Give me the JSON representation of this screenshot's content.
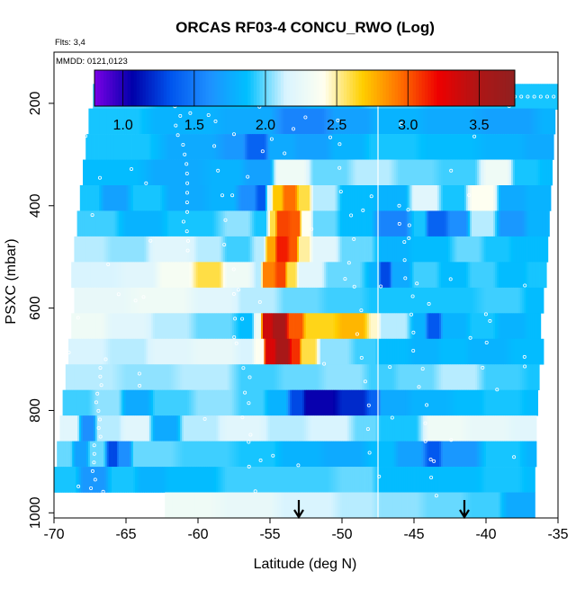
{
  "chart_data": {
    "type": "heatmap",
    "title": "ORCAS RF03-4 CONCU_RWO (Log)",
    "top_left_labels": [
      "Flts: 3,4",
      "MMDD: 0121,0123"
    ],
    "xlabel": "Latitude (deg N)",
    "ylabel": "PSXC (mbar)",
    "xlim": [
      -70,
      -35
    ],
    "ylim": [
      1010,
      100
    ],
    "x_ticks": [
      -70,
      -65,
      -60,
      -55,
      -50,
      -45,
      -40,
      -35
    ],
    "y_ticks": [
      200,
      400,
      600,
      800,
      1000
    ],
    "colorbar": {
      "range": [
        0.8,
        3.75
      ],
      "ticks": [
        1.0,
        1.5,
        2.0,
        2.5,
        3.0,
        3.5
      ],
      "tick_labels": [
        "1.0",
        "1.5",
        "2.0",
        "2.5",
        "3.0",
        "3.5"
      ],
      "colors": [
        "#7a00e6",
        "#0000aa",
        "#0055ee",
        "#1e90ff",
        "#00c0ff",
        "#d8f4ff",
        "#fffff0",
        "#ffd000",
        "#ff7000",
        "#ee0000",
        "#b01515",
        "#902020"
      ]
    },
    "divider_latitude": -47.5,
    "arrows_latitude": [
      -53,
      -41.5
    ],
    "bands": [
      {
        "p": 187,
        "x0": -67.3,
        "x1": -35,
        "segments": [
          [
            -67.3,
            1.95
          ],
          [
            -62.5,
            1.85
          ],
          [
            -59,
            1.85
          ],
          [
            -55.5,
            1.75
          ],
          [
            -52,
            1.85
          ],
          [
            -48,
            1.95
          ],
          [
            -44,
            1.9
          ],
          [
            -40,
            1.9
          ],
          [
            -36,
            1.9
          ]
        ]
      },
      {
        "p": 235,
        "x0": -67.6,
        "x1": -35.2,
        "segments": [
          [
            -67.6,
            1.9
          ],
          [
            -63,
            1.8
          ],
          [
            -58,
            1.75
          ],
          [
            -54,
            1.55
          ],
          [
            -50.5,
            1.7
          ],
          [
            -47.5,
            1.8
          ],
          [
            -44,
            1.75
          ],
          [
            -40,
            1.7
          ],
          [
            -36,
            1.8
          ]
        ]
      },
      {
        "p": 285,
        "x0": -67.8,
        "x1": -35.3,
        "segments": [
          [
            -67.8,
            1.9
          ],
          [
            -62,
            1.75
          ],
          [
            -58,
            1.65
          ],
          [
            -56.5,
            1.4
          ],
          [
            -55,
            1.75
          ],
          [
            -53,
            1.7
          ],
          [
            -50.5,
            1.8
          ],
          [
            -48,
            1.9
          ],
          [
            -44,
            1.85
          ],
          [
            -40,
            1.8
          ],
          [
            -37,
            1.75
          ]
        ]
      },
      {
        "p": 335,
        "x0": -68,
        "x1": -35.4,
        "segments": [
          [
            -68,
            1.85
          ],
          [
            -63,
            1.75
          ],
          [
            -59,
            1.8
          ],
          [
            -56.5,
            1.7
          ],
          [
            -54.5,
            2.3
          ],
          [
            -52,
            2.0
          ],
          [
            -49,
            2.1
          ],
          [
            -46,
            2.0
          ],
          [
            -43,
            1.95
          ],
          [
            -40,
            2.3
          ],
          [
            -38,
            1.9
          ],
          [
            -36,
            1.85
          ]
        ]
      },
      {
        "p": 385,
        "x0": -68.2,
        "x1": -35.5,
        "segments": [
          [
            -68.2,
            1.9
          ],
          [
            -66.5,
            1.7
          ],
          [
            -64.5,
            1.9
          ],
          [
            -62,
            1.75
          ],
          [
            -59,
            1.8
          ],
          [
            -57,
            1.6
          ],
          [
            -55.8,
            1.35
          ],
          [
            -55.2,
            2.2
          ],
          [
            -54.8,
            2.7
          ],
          [
            -54,
            2.95
          ],
          [
            -53,
            2.6
          ],
          [
            -52,
            2.1
          ],
          [
            -50,
            1.85
          ],
          [
            -47.3,
            1.8
          ],
          [
            -45,
            2.2
          ],
          [
            -43,
            1.9
          ],
          [
            -41,
            2.4
          ],
          [
            -39,
            1.75
          ],
          [
            -37,
            1.8
          ]
        ]
      },
      {
        "p": 435,
        "x0": -68.4,
        "x1": -35.6,
        "segments": [
          [
            -68.4,
            1.95
          ],
          [
            -65,
            1.8
          ],
          [
            -62,
            1.9
          ],
          [
            -58,
            2.05
          ],
          [
            -56,
            1.9
          ],
          [
            -55,
            2.6
          ],
          [
            -54.5,
            3.05
          ],
          [
            -53.5,
            3.0
          ],
          [
            -52.8,
            2.4
          ],
          [
            -52,
            2.0
          ],
          [
            -50,
            1.85
          ],
          [
            -47.3,
            1.55
          ],
          [
            -45,
            1.9
          ],
          [
            -44,
            1.4
          ],
          [
            -42.5,
            1.6
          ],
          [
            -41,
            2.1
          ],
          [
            -39,
            1.65
          ],
          [
            -37,
            1.8
          ]
        ]
      },
      {
        "p": 485,
        "x0": -68.6,
        "x1": -35.7,
        "segments": [
          [
            -68.6,
            2.1
          ],
          [
            -66,
            2.05
          ],
          [
            -63,
            2.2
          ],
          [
            -60,
            2.1
          ],
          [
            -58,
            1.95
          ],
          [
            -56,
            2.1
          ],
          [
            -55.2,
            2.8
          ],
          [
            -54.5,
            3.15
          ],
          [
            -53.6,
            3.0
          ],
          [
            -53,
            2.5
          ],
          [
            -52,
            2.2
          ],
          [
            -50,
            2.0
          ],
          [
            -47.3,
            1.8
          ],
          [
            -45,
            1.85
          ],
          [
            -42,
            2.0
          ],
          [
            -40,
            1.9
          ],
          [
            -38,
            1.85
          ]
        ]
      },
      {
        "p": 535,
        "x0": -68.8,
        "x1": -35.8,
        "segments": [
          [
            -68.8,
            2.15
          ],
          [
            -65,
            2.2
          ],
          [
            -62.5,
            2.35
          ],
          [
            -60,
            2.6
          ],
          [
            -58,
            2.3
          ],
          [
            -56,
            2.1
          ],
          [
            -55.5,
            2.9
          ],
          [
            -54.5,
            3.05
          ],
          [
            -53.8,
            2.6
          ],
          [
            -53,
            2.2
          ],
          [
            -51,
            2.0
          ],
          [
            -48,
            1.8
          ],
          [
            -47.3,
            1.3
          ],
          [
            -46.5,
            1.75
          ],
          [
            -45,
            1.95
          ],
          [
            -43,
            1.85
          ],
          [
            -41,
            1.95
          ],
          [
            -39,
            1.85
          ],
          [
            -37,
            1.9
          ]
        ]
      },
      {
        "p": 585,
        "x0": -68.6,
        "x1": -36,
        "segments": [
          [
            -68.6,
            2.25
          ],
          [
            -64,
            2.3
          ],
          [
            -60,
            2.2
          ],
          [
            -57,
            2.1
          ],
          [
            -54,
            2.0
          ],
          [
            -51,
            1.95
          ],
          [
            -48,
            1.9
          ],
          [
            -44,
            1.9
          ],
          [
            -40,
            1.95
          ],
          [
            -37,
            1.85
          ]
        ]
      },
      {
        "p": 635,
        "x0": -68.8,
        "x1": -36.2,
        "segments": [
          [
            -68.8,
            2.3
          ],
          [
            -66,
            2.2
          ],
          [
            -63,
            2.1
          ],
          [
            -60,
            2.0
          ],
          [
            -57,
            1.85
          ],
          [
            -56,
            2.3
          ],
          [
            -55.5,
            3.35
          ],
          [
            -54.7,
            3.55
          ],
          [
            -53.7,
            3.0
          ],
          [
            -52.5,
            2.65
          ],
          [
            -50,
            2.75
          ],
          [
            -48,
            2.45
          ],
          [
            -47.3,
            2.1
          ],
          [
            -45,
            1.8
          ],
          [
            -44,
            1.35
          ],
          [
            -43,
            1.8
          ],
          [
            -41,
            1.9
          ],
          [
            -39,
            1.8
          ],
          [
            -37,
            1.85
          ]
        ]
      },
      {
        "p": 685,
        "x0": -69,
        "x1": -36,
        "segments": [
          [
            -69,
            2.15
          ],
          [
            -66,
            2.1
          ],
          [
            -63,
            2.2
          ],
          [
            -60,
            2.25
          ],
          [
            -57,
            2.15
          ],
          [
            -56,
            2.4
          ],
          [
            -55.3,
            3.3
          ],
          [
            -54.5,
            3.55
          ],
          [
            -53.5,
            3.1
          ],
          [
            -52.8,
            2.6
          ],
          [
            -51.5,
            2.05
          ],
          [
            -49,
            1.95
          ],
          [
            -47.3,
            1.85
          ],
          [
            -45,
            1.8
          ],
          [
            -43,
            1.85
          ],
          [
            -41,
            1.8
          ],
          [
            -38,
            1.85
          ]
        ]
      },
      {
        "p": 735,
        "x0": -69.2,
        "x1": -36.3,
        "segments": [
          [
            -69.2,
            2.1
          ],
          [
            -65,
            2.05
          ],
          [
            -61,
            2.1
          ],
          [
            -57,
            1.95
          ],
          [
            -54,
            2.0
          ],
          [
            -51,
            2.05
          ],
          [
            -48,
            1.95
          ],
          [
            -46,
            2.0
          ],
          [
            -43,
            2.1
          ],
          [
            -40,
            1.95
          ],
          [
            -37,
            1.9
          ]
        ]
      },
      {
        "p": 785,
        "x0": -69.4,
        "x1": -36.4,
        "segments": [
          [
            -69.4,
            1.95
          ],
          [
            -67,
            2.05
          ],
          [
            -65,
            1.75
          ],
          [
            -63,
            1.95
          ],
          [
            -60,
            2.05
          ],
          [
            -57,
            1.95
          ],
          [
            -55,
            1.8
          ],
          [
            -53.5,
            1.3
          ],
          [
            -52.5,
            1.05
          ],
          [
            -50,
            1.2
          ],
          [
            -48,
            1.4
          ],
          [
            -47.3,
            1.75
          ],
          [
            -45,
            1.8
          ],
          [
            -42,
            1.85
          ],
          [
            -40,
            1.9
          ],
          [
            -37,
            1.85
          ]
        ]
      },
      {
        "p": 835,
        "x0": -69.6,
        "x1": -36.5,
        "segments": [
          [
            -69.6,
            2.2
          ],
          [
            -68,
            1.6
          ],
          [
            -67,
            2.1
          ],
          [
            -65,
            2.2
          ],
          [
            -63,
            1.75
          ],
          [
            -61,
            2.1
          ],
          [
            -58,
            2.2
          ],
          [
            -55,
            2.1
          ],
          [
            -52,
            2.15
          ],
          [
            -49,
            2.0
          ],
          [
            -47.3,
            1.9
          ],
          [
            -44,
            2.3
          ],
          [
            -41,
            2.25
          ],
          [
            -38,
            2.2
          ]
        ]
      },
      {
        "p": 885,
        "x0": -69.8,
        "x1": -36.5,
        "segments": [
          [
            -69.8,
            2.0
          ],
          [
            -68.5,
            1.7
          ],
          [
            -67.5,
            2.0
          ],
          [
            -66.2,
            1.3
          ],
          [
            -65.5,
            1.6
          ],
          [
            -64.5,
            2.0
          ],
          [
            -61,
            1.95
          ],
          [
            -57,
            1.9
          ],
          [
            -54,
            1.8
          ],
          [
            -51,
            1.75
          ],
          [
            -48,
            1.85
          ],
          [
            -46,
            1.7
          ],
          [
            -44,
            1.35
          ],
          [
            -43,
            1.65
          ],
          [
            -40,
            1.9
          ],
          [
            -37,
            1.8
          ]
        ]
      },
      {
        "p": 935,
        "x0": -70,
        "x1": -36.6,
        "segments": [
          [
            -70,
            1.9
          ],
          [
            -68,
            1.65
          ],
          [
            -66,
            1.9
          ],
          [
            -64,
            1.8
          ],
          [
            -62,
            1.85
          ],
          [
            -58,
            1.95
          ],
          [
            -54,
            1.95
          ],
          [
            -50,
            2.0
          ],
          [
            -47.3,
            1.85
          ],
          [
            -43,
            1.85
          ],
          [
            -40,
            1.9
          ],
          [
            -37,
            1.85
          ]
        ]
      },
      {
        "p": 985,
        "x0": -62.3,
        "x1": -36.6,
        "segments": [
          [
            -62.3,
            2.3
          ],
          [
            -58,
            2.25
          ],
          [
            -54,
            2.15
          ],
          [
            -50,
            2.1
          ],
          [
            -47.3,
            2.05
          ],
          [
            -44,
            2.0
          ],
          [
            -41,
            1.95
          ],
          [
            -38.5,
            1.75
          ]
        ]
      }
    ]
  }
}
